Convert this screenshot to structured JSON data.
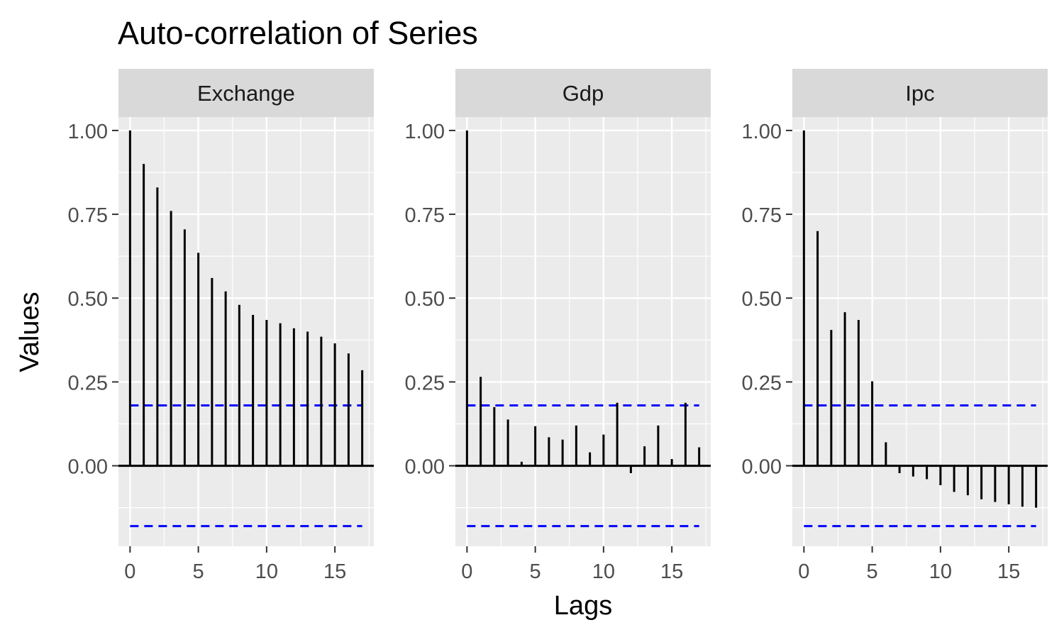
{
  "chart_data": {
    "type": "bar",
    "title": "Auto-correlation of Series",
    "xlabel": "Lags",
    "ylabel": "Values",
    "xlim": [
      -0.85,
      17.85
    ],
    "ylim": [
      -0.24,
      1.04
    ],
    "x_ticks": [
      0,
      5,
      10,
      15
    ],
    "y_ticks": [
      0.0,
      0.25,
      0.5,
      0.75,
      1.0
    ],
    "y_tick_labels": [
      "0.00",
      "0.25",
      "0.50",
      "0.75",
      "1.00"
    ],
    "grid": true,
    "colors": {
      "panel_background": "#EBEBEB",
      "strip_background": "#D9D9D9",
      "grid": "#FFFFFF",
      "bars": "#000000",
      "confidence_band": "#0000FF"
    },
    "facets": [
      {
        "name": "Exchange",
        "lags": [
          0,
          1,
          2,
          3,
          4,
          5,
          6,
          7,
          8,
          9,
          10,
          11,
          12,
          13,
          14,
          15,
          16,
          17
        ],
        "values": [
          1.0,
          0.9,
          0.83,
          0.76,
          0.705,
          0.635,
          0.56,
          0.52,
          0.48,
          0.45,
          0.435,
          0.425,
          0.41,
          0.4,
          0.385,
          0.365,
          0.335,
          0.285
        ],
        "confidence_band": [
          0.18,
          -0.18
        ]
      },
      {
        "name": "Gdp",
        "lags": [
          0,
          1,
          2,
          3,
          4,
          5,
          6,
          7,
          8,
          9,
          10,
          11,
          12,
          13,
          14,
          15,
          16,
          17
        ],
        "values": [
          1.0,
          0.265,
          0.175,
          0.138,
          0.012,
          0.118,
          0.085,
          0.078,
          0.12,
          0.04,
          0.093,
          0.188,
          -0.022,
          0.058,
          0.12,
          0.02,
          0.188,
          0.055
        ],
        "confidence_band": [
          0.18,
          -0.18
        ]
      },
      {
        "name": "Ipc",
        "lags": [
          0,
          1,
          2,
          3,
          4,
          5,
          6,
          7,
          8,
          9,
          10,
          11,
          12,
          13,
          14,
          15,
          16,
          17
        ],
        "values": [
          1.0,
          0.7,
          0.405,
          0.458,
          0.435,
          0.252,
          0.07,
          -0.022,
          -0.032,
          -0.04,
          -0.058,
          -0.078,
          -0.088,
          -0.1,
          -0.108,
          -0.115,
          -0.122,
          -0.125
        ],
        "confidence_band": [
          0.18,
          -0.18
        ]
      }
    ]
  }
}
